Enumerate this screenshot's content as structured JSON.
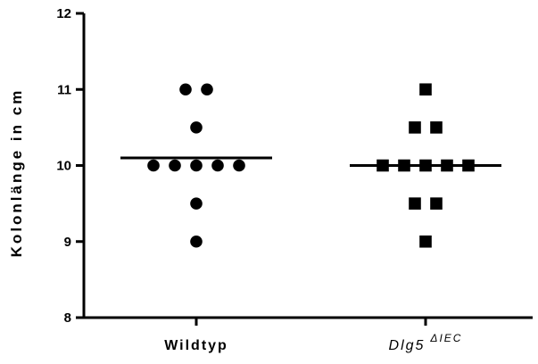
{
  "chart_data": {
    "type": "scatter",
    "ylabel": "Kolonlänge in cm",
    "ylim": [
      8,
      12
    ],
    "yticks": [
      8,
      9,
      10,
      11,
      12
    ],
    "grid": false,
    "categories": [
      {
        "label": "Wildtyp",
        "gene": "",
        "sup": ""
      },
      {
        "label": "",
        "gene": "Dlg5",
        "sup": "ΔIEC"
      }
    ],
    "series": [
      {
        "marker": "circle",
        "color": "#000000",
        "values": [
          11,
          11,
          10.5,
          10,
          10,
          10,
          10,
          10,
          9.5,
          9
        ],
        "mean": 10.1
      },
      {
        "marker": "square",
        "color": "#000000",
        "values": [
          11,
          10.5,
          10.5,
          10,
          10,
          10,
          10,
          10,
          9.5,
          9.5,
          9
        ],
        "mean": 10.0
      }
    ]
  }
}
